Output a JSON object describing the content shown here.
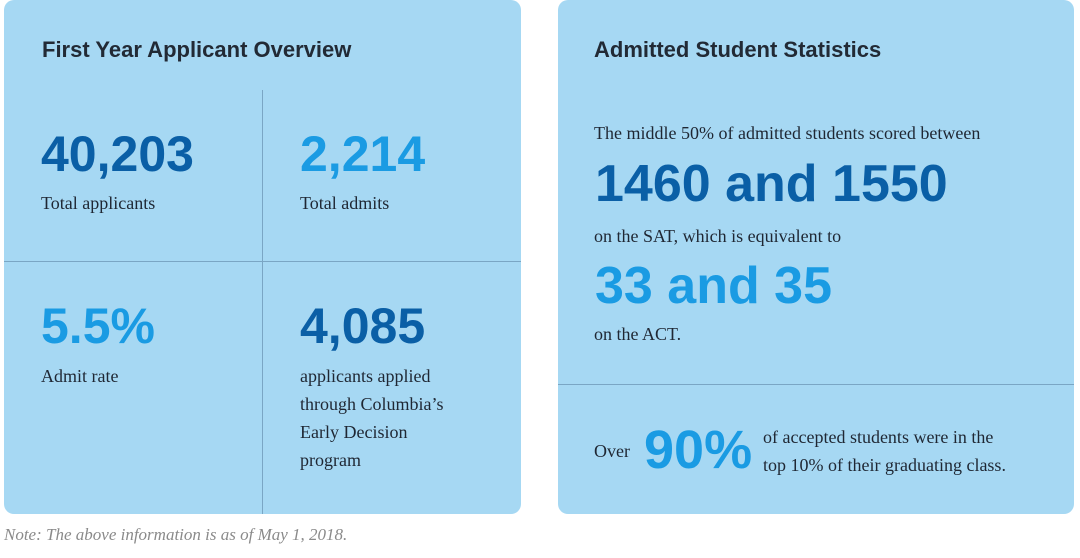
{
  "overview": {
    "title": "First Year Applicant Overview",
    "stats": [
      {
        "value": "40,203",
        "label": "Total applicants"
      },
      {
        "value": "2,214",
        "label": "Total admits"
      },
      {
        "value": "5.5%",
        "label": "Admit rate"
      },
      {
        "value": "4,085",
        "label_lines": [
          "applicants applied",
          "through Columbia’s",
          "Early Decision",
          "program"
        ]
      }
    ]
  },
  "admitted": {
    "title": "Admitted Student Statistics",
    "intro": "The middle 50% of admitted students scored between",
    "sat_range": "1460 and 1550",
    "sat_text": "on the SAT, which is equivalent to",
    "act_range": "33 and 35",
    "act_text": "on the ACT.",
    "over_label": "Over",
    "percent": "90%",
    "percent_text_lines": [
      "of accepted students were in the",
      "top 10% of their graduating class."
    ]
  },
  "note": "Note: The above information is as of May 1, 2018.",
  "colors": {
    "card_bg": "#a6d8f3",
    "dark_blue": "#0a5fa6",
    "light_blue": "#1a9be3"
  }
}
